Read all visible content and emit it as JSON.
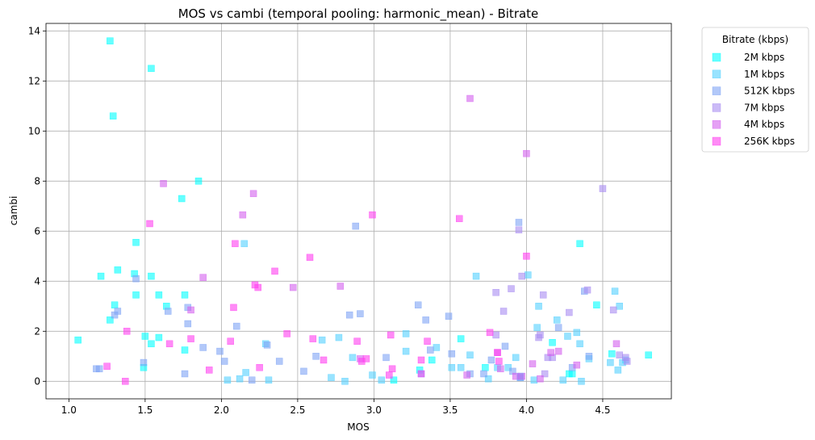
{
  "chart_data": {
    "type": "scatter",
    "title": "MOS vs cambi (temporal pooling: harmonic_mean) - Bitrate",
    "xlabel": "MOS",
    "ylabel": "cambi",
    "xlim": [
      0.85,
      4.95
    ],
    "ylim": [
      -0.7,
      14.3
    ],
    "xticks": [
      1.0,
      1.5,
      2.0,
      2.5,
      3.0,
      3.5,
      4.0,
      4.5
    ],
    "xtick_labels": [
      "1.0",
      "1.5",
      "2.0",
      "2.5",
      "3.0",
      "3.5",
      "4.0",
      "4.5"
    ],
    "yticks": [
      0,
      2,
      4,
      6,
      8,
      10,
      12,
      14
    ],
    "ytick_labels": [
      "0",
      "2",
      "4",
      "6",
      "8",
      "10",
      "12",
      "14"
    ],
    "grid": true,
    "marker": "square",
    "legend": {
      "title": "Bitrate (kbps)",
      "placement": "outside-top-right"
    },
    "series": [
      {
        "name": "2M kbps",
        "color": "#00ffff",
        "points": [
          [
            1.06,
            1.65
          ],
          [
            1.21,
            4.2
          ],
          [
            1.27,
            13.6
          ],
          [
            1.27,
            2.45
          ],
          [
            1.29,
            10.6
          ],
          [
            1.3,
            3.05
          ],
          [
            1.32,
            4.45
          ],
          [
            1.43,
            4.3
          ],
          [
            1.44,
            3.45
          ],
          [
            1.44,
            5.55
          ],
          [
            1.49,
            0.55
          ],
          [
            1.5,
            1.8
          ],
          [
            1.54,
            12.5
          ],
          [
            1.54,
            4.2
          ],
          [
            1.54,
            1.5
          ],
          [
            1.59,
            1.75
          ],
          [
            1.59,
            3.45
          ],
          [
            1.64,
            3.0
          ],
          [
            1.74,
            7.3
          ],
          [
            1.76,
            3.45
          ],
          [
            1.76,
            1.25
          ],
          [
            1.85,
            8.0
          ],
          [
            3.13,
            0.05
          ],
          [
            3.3,
            0.45
          ],
          [
            3.38,
            0.85
          ],
          [
            3.57,
            1.7
          ],
          [
            3.73,
            0.55
          ],
          [
            3.96,
            0.2
          ],
          [
            4.17,
            1.55
          ],
          [
            4.28,
            0.3
          ],
          [
            4.3,
            0.3
          ],
          [
            4.35,
            5.5
          ],
          [
            4.46,
            3.05
          ],
          [
            4.56,
            1.1
          ],
          [
            4.8,
            1.05
          ]
        ]
      },
      {
        "name": "1M kbps",
        "color": "#54d0ff",
        "points": [
          [
            2.04,
            0.05
          ],
          [
            2.12,
            0.1
          ],
          [
            2.15,
            5.5
          ],
          [
            2.16,
            0.35
          ],
          [
            2.29,
            1.5
          ],
          [
            2.31,
            0.05
          ],
          [
            2.66,
            1.65
          ],
          [
            2.72,
            0.15
          ],
          [
            2.77,
            1.75
          ],
          [
            2.81,
            0.0
          ],
          [
            2.86,
            0.95
          ],
          [
            2.99,
            0.25
          ],
          [
            3.05,
            0.05
          ],
          [
            3.21,
            1.9
          ],
          [
            3.21,
            1.2
          ],
          [
            3.31,
            0.3
          ],
          [
            3.41,
            1.35
          ],
          [
            3.51,
            0.55
          ],
          [
            3.57,
            0.55
          ],
          [
            3.63,
            1.05
          ],
          [
            3.67,
            4.2
          ],
          [
            3.75,
            0.1
          ],
          [
            3.81,
            0.55
          ],
          [
            3.88,
            0.55
          ],
          [
            3.93,
            0.95
          ],
          [
            3.96,
            0.15
          ],
          [
            4.01,
            4.25
          ],
          [
            4.05,
            0.05
          ],
          [
            4.07,
            2.15
          ],
          [
            4.08,
            3.0
          ],
          [
            4.2,
            2.45
          ],
          [
            4.24,
            0.05
          ],
          [
            4.27,
            1.8
          ],
          [
            4.33,
            1.95
          ],
          [
            4.35,
            1.5
          ],
          [
            4.36,
            0.0
          ],
          [
            4.41,
            0.9
          ],
          [
            4.55,
            0.75
          ],
          [
            4.6,
            0.45
          ],
          [
            4.61,
            3.0
          ],
          [
            4.63,
            0.75
          ],
          [
            4.58,
            3.6
          ],
          [
            4.65,
            0.85
          ]
        ]
      },
      {
        "name": "512K kbps",
        "color": "#7ea4f5",
        "points": [
          [
            1.18,
            0.5
          ],
          [
            1.2,
            0.5
          ],
          [
            1.3,
            2.65
          ],
          [
            1.32,
            2.8
          ],
          [
            1.44,
            4.1
          ],
          [
            1.49,
            0.75
          ],
          [
            1.65,
            2.8
          ],
          [
            1.76,
            0.3
          ],
          [
            1.78,
            2.3
          ],
          [
            1.78,
            2.95
          ],
          [
            1.88,
            1.35
          ],
          [
            1.99,
            1.2
          ],
          [
            2.02,
            0.8
          ],
          [
            2.1,
            2.2
          ],
          [
            2.2,
            0.05
          ],
          [
            2.3,
            1.45
          ],
          [
            2.38,
            0.8
          ],
          [
            2.54,
            0.4
          ],
          [
            2.62,
            1.0
          ],
          [
            2.84,
            2.65
          ],
          [
            2.88,
            6.2
          ],
          [
            2.91,
            2.7
          ],
          [
            3.08,
            0.95
          ],
          [
            3.29,
            3.05
          ],
          [
            3.34,
            2.45
          ],
          [
            3.37,
            1.25
          ],
          [
            3.49,
            2.6
          ],
          [
            3.51,
            1.1
          ],
          [
            3.63,
            0.3
          ],
          [
            3.72,
            0.3
          ],
          [
            3.77,
            0.85
          ],
          [
            3.86,
            1.4
          ],
          [
            3.91,
            0.4
          ],
          [
            3.95,
            6.35
          ],
          [
            3.96,
            0.15
          ],
          [
            4.21,
            2.15
          ],
          [
            4.3,
            0.55
          ],
          [
            4.38,
            3.6
          ],
          [
            4.41,
            1.0
          ]
        ]
      },
      {
        "name": "7M kbps",
        "color": "#a88cf2",
        "points": [
          [
            3.8,
            1.85
          ],
          [
            3.8,
            3.55
          ],
          [
            3.85,
            2.8
          ],
          [
            3.9,
            3.7
          ],
          [
            3.95,
            6.05
          ],
          [
            3.97,
            4.2
          ],
          [
            4.08,
            1.75
          ],
          [
            4.09,
            1.85
          ],
          [
            4.11,
            3.45
          ],
          [
            4.12,
            0.3
          ],
          [
            4.14,
            0.95
          ],
          [
            4.17,
            0.95
          ],
          [
            4.28,
            2.75
          ],
          [
            4.4,
            3.65
          ],
          [
            4.5,
            7.7
          ],
          [
            4.57,
            2.85
          ],
          [
            4.61,
            1.05
          ],
          [
            4.65,
            0.95
          ],
          [
            4.66,
            0.8
          ]
        ]
      },
      {
        "name": "4M kbps",
        "color": "#d460ef",
        "points": [
          [
            1.62,
            7.9
          ],
          [
            1.8,
            2.85
          ],
          [
            1.88,
            4.15
          ],
          [
            2.14,
            6.65
          ],
          [
            2.21,
            7.5
          ],
          [
            2.47,
            3.75
          ],
          [
            2.78,
            3.8
          ],
          [
            2.91,
            0.9
          ],
          [
            3.61,
            0.25
          ],
          [
            3.63,
            11.3
          ],
          [
            3.81,
            1.15
          ],
          [
            3.83,
            0.5
          ],
          [
            3.93,
            0.2
          ],
          [
            3.97,
            0.2
          ],
          [
            4.0,
            9.1
          ],
          [
            4.04,
            0.7
          ],
          [
            4.09,
            0.1
          ],
          [
            4.16,
            1.15
          ],
          [
            4.21,
            1.2
          ],
          [
            4.33,
            0.65
          ],
          [
            4.59,
            1.5
          ]
        ]
      },
      {
        "name": "256K kbps",
        "color": "#ff3ef0",
        "points": [
          [
            1.25,
            0.6
          ],
          [
            1.37,
            0.0
          ],
          [
            1.38,
            2.0
          ],
          [
            1.53,
            6.3
          ],
          [
            1.66,
            1.5
          ],
          [
            1.8,
            1.7
          ],
          [
            1.92,
            0.45
          ],
          [
            2.06,
            1.6
          ],
          [
            2.08,
            2.95
          ],
          [
            2.09,
            5.5
          ],
          [
            2.22,
            3.85
          ],
          [
            2.24,
            3.75
          ],
          [
            2.25,
            0.55
          ],
          [
            2.35,
            4.4
          ],
          [
            2.43,
            1.9
          ],
          [
            2.58,
            4.95
          ],
          [
            2.6,
            1.7
          ],
          [
            2.67,
            0.85
          ],
          [
            2.89,
            1.6
          ],
          [
            2.92,
            0.8
          ],
          [
            2.95,
            0.9
          ],
          [
            2.99,
            6.65
          ],
          [
            3.1,
            0.25
          ],
          [
            3.11,
            1.85
          ],
          [
            3.12,
            0.5
          ],
          [
            3.31,
            0.85
          ],
          [
            3.31,
            0.3
          ],
          [
            3.35,
            1.6
          ],
          [
            3.56,
            6.5
          ],
          [
            3.76,
            1.95
          ],
          [
            3.81,
            1.15
          ],
          [
            3.82,
            0.8
          ],
          [
            4.0,
            5.0
          ]
        ]
      }
    ]
  }
}
